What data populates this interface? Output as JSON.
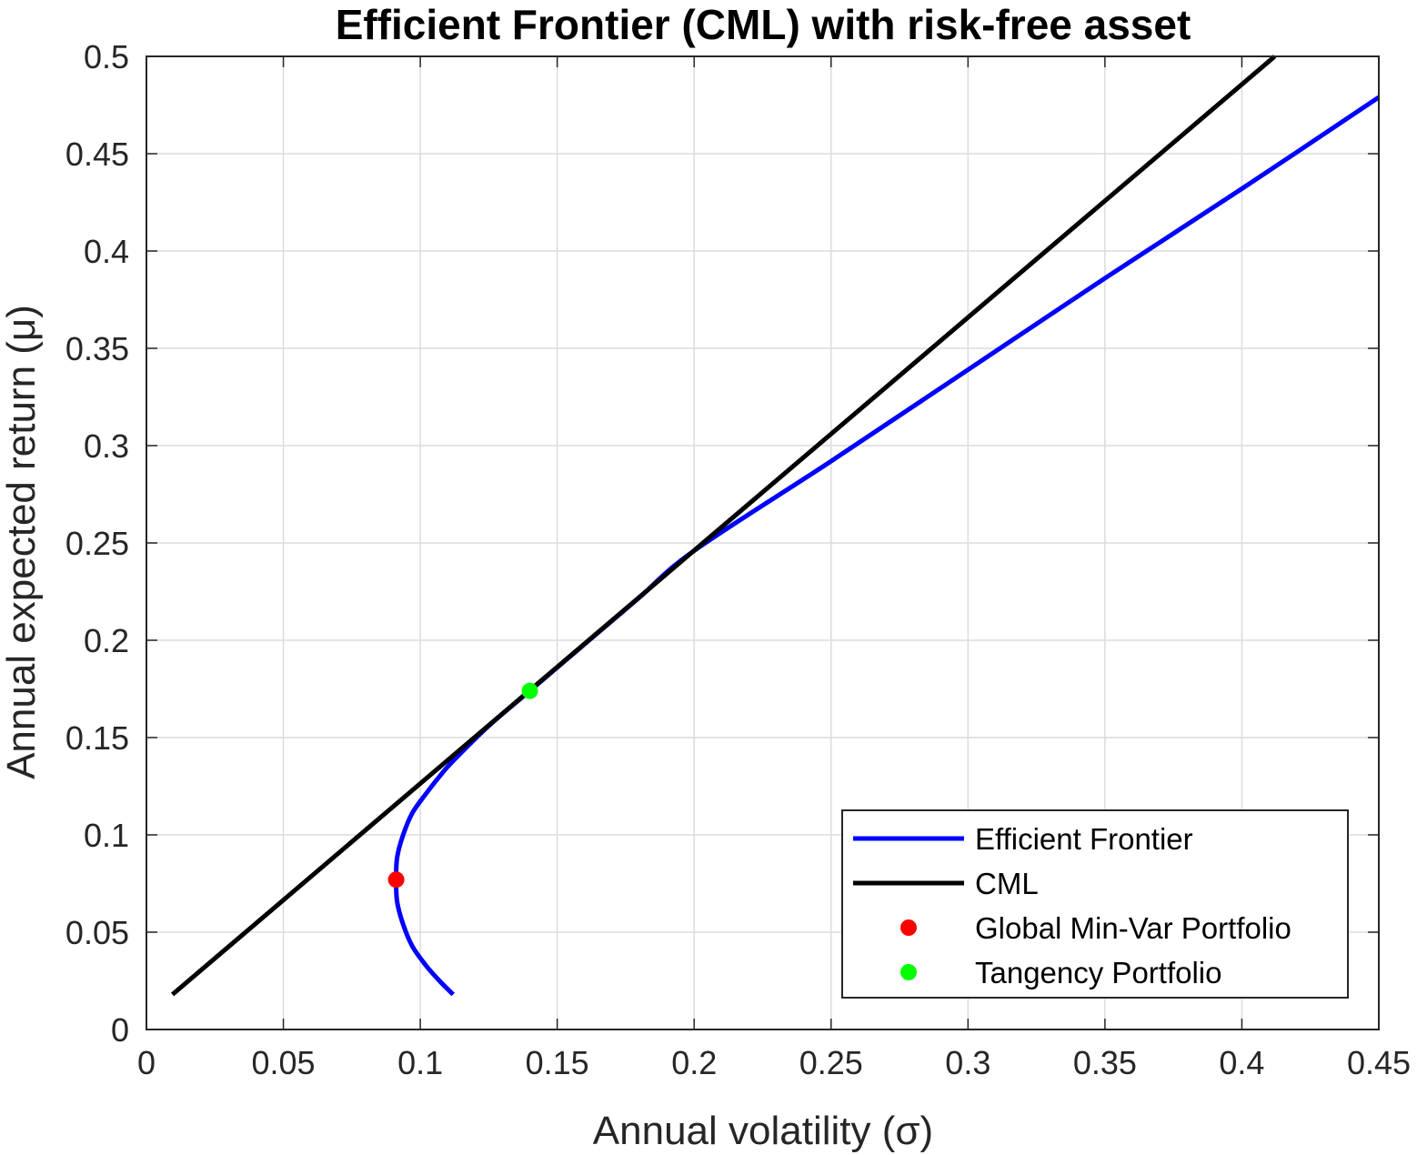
{
  "chart_data": {
    "type": "line",
    "title": "Efficient Frontier (CML) with risk-free asset",
    "xlabel": "Annual volatility (σ)",
    "ylabel": "Annual expected return (μ)",
    "xlim": [
      0,
      0.45
    ],
    "ylim": [
      0,
      0.5
    ],
    "xticks": [
      "0",
      "0.05",
      "0.1",
      "0.15",
      "0.2",
      "0.25",
      "0.3",
      "0.35",
      "0.4",
      "0.45"
    ],
    "yticks": [
      "0",
      "0.05",
      "0.1",
      "0.15",
      "0.2",
      "0.25",
      "0.3",
      "0.35",
      "0.4",
      "0.45",
      "0.5"
    ],
    "grid": true,
    "legend_position": "bottom-right",
    "series": [
      {
        "name": "Efficient Frontier",
        "type": "line",
        "color": "#0000ff",
        "x": [
          0.112,
          0.107,
          0.102,
          0.097,
          0.0935,
          0.0915,
          0.0912,
          0.0915,
          0.0935,
          0.097,
          0.102,
          0.107,
          0.112,
          0.125,
          0.14,
          0.16,
          0.18,
          0.2,
          0.25,
          0.3,
          0.35,
          0.4,
          0.45
        ],
        "y": [
          0.018,
          0.025,
          0.033,
          0.043,
          0.055,
          0.066,
          0.077,
          0.088,
          0.099,
          0.111,
          0.121,
          0.13,
          0.138,
          0.156,
          0.174,
          0.198,
          0.222,
          0.246,
          0.292,
          0.339,
          0.386,
          0.432,
          0.479
        ]
      },
      {
        "name": "CML",
        "type": "line",
        "color": "#000000",
        "x": [
          0.0095,
          0.412
        ],
        "y": [
          0.018,
          0.5
        ]
      },
      {
        "name": "Global Min-Var Portfolio",
        "type": "scatter",
        "color": "#ff0000",
        "x": [
          0.0912
        ],
        "y": [
          0.077
        ]
      },
      {
        "name": "Tangency Portfolio",
        "type": "scatter",
        "color": "#00ff00",
        "x": [
          0.14
        ],
        "y": [
          0.174
        ]
      }
    ]
  }
}
